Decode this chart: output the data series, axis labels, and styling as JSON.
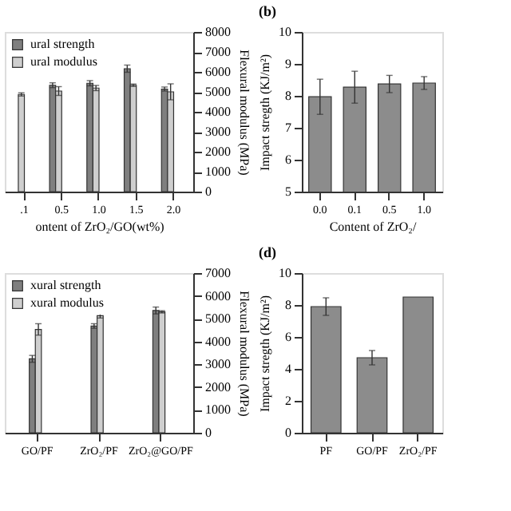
{
  "chart_data": [
    {
      "type": "bar",
      "xlabel": "ontent of ZrO₂/GO(wt%)",
      "y2label": "Flexural modulus (MPa)",
      "categories": [
        ".1",
        "0.5",
        "1.0",
        "1.5",
        "2.0"
      ],
      "y2lim": [
        0,
        8000
      ],
      "y2ticks": [
        0,
        1000,
        2000,
        3000,
        4000,
        5000,
        6000,
        7000,
        8000
      ],
      "legend": "top left",
      "grid": false,
      "series": [
        {
          "name": "ural strength",
          "color": "#7f7f7f",
          "axis": "y2",
          "values": [
            null,
            5330,
            5430,
            6160,
            5140
          ],
          "errors": [
            null,
            120,
            130,
            180,
            100
          ]
        },
        {
          "name": "ural modulus",
          "color": "#cfcfcf",
          "axis": "y2",
          "values": [
            4870,
            5040,
            5190,
            5330,
            5000
          ],
          "errors": [
            80,
            220,
            130,
            60,
            400
          ]
        }
      ]
    },
    {
      "type": "bar",
      "title": "(b)",
      "xlabel": "Content of ZrO₂/",
      "ylabel": "Impact stregth (KJ/m²)",
      "categories": [
        "0.0",
        "0.1",
        "0.5",
        "1.0"
      ],
      "ylim": [
        5,
        10
      ],
      "yticks": [
        5,
        6,
        7,
        8,
        9,
        10
      ],
      "grid": false,
      "series": [
        {
          "color": "#8c8c8c",
          "values": [
            7.97,
            8.27,
            8.37,
            8.4
          ],
          "errors": [
            0.55,
            0.5,
            0.27,
            0.2
          ]
        }
      ]
    },
    {
      "type": "bar",
      "y2label": "Flexural modulus (MPa)",
      "categories": [
        "GO/PF",
        "ZrO₂/PF",
        "ZrO₂@GO/PF"
      ],
      "y2lim": [
        0,
        7000
      ],
      "y2ticks": [
        0,
        1000,
        2000,
        3000,
        4000,
        5000,
        6000,
        7000
      ],
      "legend": "top left",
      "grid": false,
      "series": [
        {
          "name": "xural strength",
          "color": "#7f7f7f",
          "axis": "y2",
          "values": [
            3240,
            4680,
            5360
          ],
          "errors": [
            150,
            100,
            150
          ]
        },
        {
          "name": "xural modulus",
          "color": "#cfcfcf",
          "axis": "y2",
          "values": [
            4530,
            5130,
            5300
          ],
          "errors": [
            250,
            100,
            50
          ]
        }
      ]
    },
    {
      "type": "bar",
      "title": "(d)",
      "ylabel": "Impact stregth (KJ/m²)",
      "categories": [
        "PF",
        "GO/PF",
        "ZrO₂/PF"
      ],
      "ylim": [
        0,
        10
      ],
      "yticks": [
        0,
        2,
        4,
        6,
        8,
        10
      ],
      "grid": false,
      "series": [
        {
          "color": "#8c8c8c",
          "values": [
            7.9,
            4.7,
            8.5
          ],
          "errors": [
            0.55,
            0.45,
            null
          ]
        }
      ]
    }
  ]
}
